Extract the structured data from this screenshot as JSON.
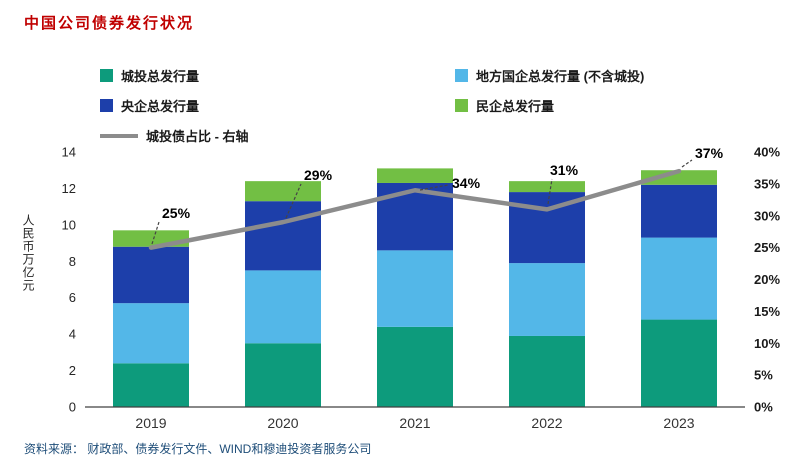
{
  "title": "中国公司债券发行状况",
  "source": "资料来源： 财政部、债券发行文件、WIND和穆迪投资者服务公司",
  "colors": {
    "title": "#c00000",
    "source_text": "#1f4e79",
    "axis_text": "#262626",
    "axis_line": "#404040"
  },
  "chart_data": {
    "type": "bar",
    "stacked": true,
    "title": "中国公司债券发行状况",
    "categories": [
      "2019",
      "2020",
      "2021",
      "2022",
      "2023"
    ],
    "series": [
      {
        "name": "城投总发行量",
        "color": "#0d9b7c",
        "values": [
          2.4,
          3.5,
          4.4,
          3.9,
          4.8
        ]
      },
      {
        "name": "地方国企总发行量 (不含城投)",
        "color": "#53b7e8",
        "values": [
          3.3,
          4.0,
          4.2,
          4.0,
          4.5
        ]
      },
      {
        "name": "央企总发行量",
        "color": "#1d3faa",
        "values": [
          3.1,
          3.8,
          3.7,
          3.9,
          2.9
        ]
      },
      {
        "name": "民企总发行量",
        "color": "#72bf44",
        "values": [
          0.9,
          1.1,
          0.8,
          0.6,
          0.8
        ]
      }
    ],
    "line": {
      "name": "城投债占比 - 右轴",
      "color": "#8c8c8c",
      "values_pct": [
        25,
        29,
        34,
        31,
        37
      ],
      "labels": [
        "25%",
        "29%",
        "34%",
        "31%",
        "37%"
      ]
    },
    "ylabel": "人民币万亿元",
    "ylim": [
      0,
      14
    ],
    "yticks": [
      0,
      2,
      4,
      6,
      8,
      10,
      12,
      14
    ],
    "y2lim_pct": [
      0,
      40
    ],
    "y2ticks": [
      "0%",
      "5%",
      "10%",
      "15%",
      "20%",
      "25%",
      "30%",
      "35%",
      "40%"
    ],
    "grid": false,
    "legend_position": "top"
  }
}
